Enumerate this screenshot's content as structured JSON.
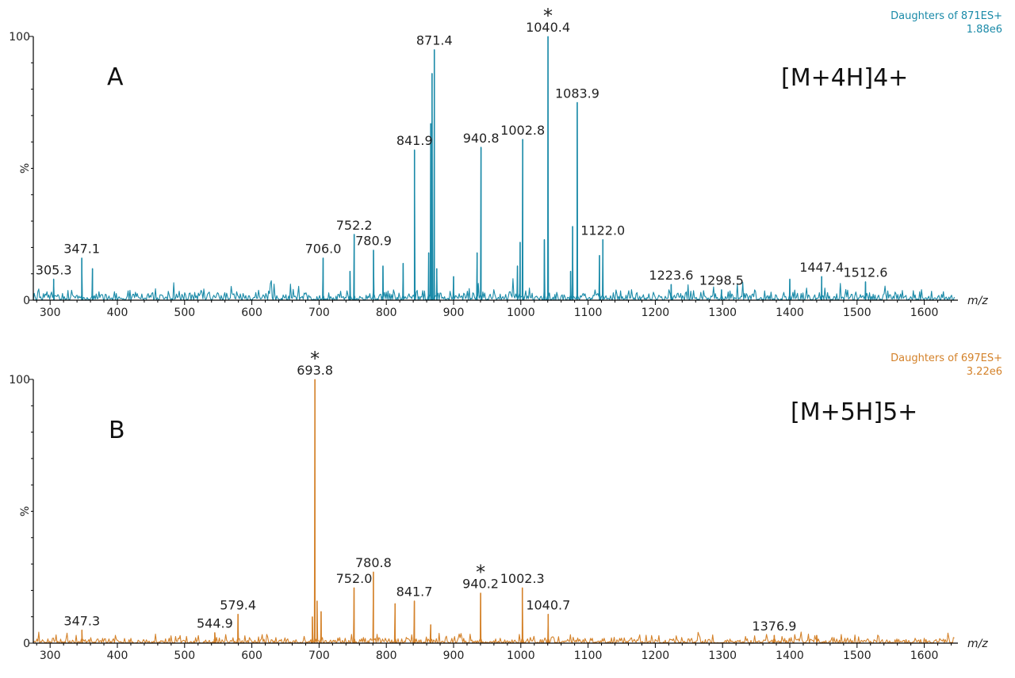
{
  "chart_data": [
    {
      "type": "line",
      "panel_label": "A",
      "ion_label": "[M+4H]4+",
      "info_line1": "Daughters of 871ES+",
      "info_line2": "1.88e6",
      "color": "#1a8aa8",
      "xlabel": "m/z",
      "ylabel": "%",
      "xlim": [
        275,
        1650
      ],
      "ylim": [
        0,
        100
      ],
      "x_ticks": [
        300,
        400,
        500,
        600,
        700,
        800,
        900,
        1000,
        1100,
        1200,
        1300,
        1400,
        1500,
        1600
      ],
      "x_tick_labels": [
        "300",
        "400",
        "500",
        "600",
        "700",
        "800",
        "900",
        "1000",
        "1100",
        "1200",
        "1300",
        "1400",
        "1500",
        "1600"
      ],
      "y_ticks": [
        0,
        100
      ],
      "y_tick_labels": [
        "0",
        "100"
      ],
      "peaks": [
        {
          "x": 305.3,
          "y": 8,
          "label": "305.3"
        },
        {
          "x": 347.1,
          "y": 16,
          "label": "347.1"
        },
        {
          "x": 363,
          "y": 12
        },
        {
          "x": 706.0,
          "y": 16,
          "label": "706.0"
        },
        {
          "x": 746,
          "y": 11
        },
        {
          "x": 752.2,
          "y": 25,
          "label": "752.2"
        },
        {
          "x": 780.9,
          "y": 19,
          "label": "780.9"
        },
        {
          "x": 795,
          "y": 13
        },
        {
          "x": 825,
          "y": 14
        },
        {
          "x": 841.9,
          "y": 57,
          "label": "841.9"
        },
        {
          "x": 863,
          "y": 18
        },
        {
          "x": 866,
          "y": 67
        },
        {
          "x": 868,
          "y": 86
        },
        {
          "x": 871.4,
          "y": 95,
          "label": "871.4"
        },
        {
          "x": 875,
          "y": 12
        },
        {
          "x": 900,
          "y": 9
        },
        {
          "x": 935,
          "y": 18
        },
        {
          "x": 940.8,
          "y": 58,
          "label": "940.8"
        },
        {
          "x": 995,
          "y": 13
        },
        {
          "x": 999,
          "y": 22
        },
        {
          "x": 1002.8,
          "y": 61,
          "label": "1002.8"
        },
        {
          "x": 1035,
          "y": 23
        },
        {
          "x": 1040.4,
          "y": 100,
          "label": "1040.4",
          "star": true
        },
        {
          "x": 1074,
          "y": 11
        },
        {
          "x": 1077,
          "y": 28
        },
        {
          "x": 1083.9,
          "y": 75,
          "label": "1083.9"
        },
        {
          "x": 1117,
          "y": 17
        },
        {
          "x": 1122.0,
          "y": 23,
          "label": "1122.0"
        },
        {
          "x": 1223.6,
          "y": 6,
          "label": "1223.6"
        },
        {
          "x": 1298.5,
          "y": 4,
          "label": "1298.5"
        },
        {
          "x": 1400,
          "y": 8
        },
        {
          "x": 1447.4,
          "y": 9,
          "label": "1447.4"
        },
        {
          "x": 1512.6,
          "y": 7,
          "label": "1512.6"
        }
      ]
    },
    {
      "type": "line",
      "panel_label": "B",
      "ion_label": "[M+5H]5+",
      "info_line1": "Daughters of 697ES+",
      "info_line2": "3.22e6",
      "color": "#d4822a",
      "xlabel": "m/z",
      "ylabel": "%",
      "xlim": [
        275,
        1650
      ],
      "ylim": [
        0,
        100
      ],
      "x_ticks": [
        300,
        400,
        500,
        600,
        700,
        800,
        900,
        1000,
        1100,
        1200,
        1300,
        1400,
        1500,
        1600
      ],
      "x_tick_labels": [
        "300",
        "400",
        "500",
        "600",
        "700",
        "800",
        "900",
        "1000",
        "1100",
        "1200",
        "1300",
        "1400",
        "1500",
        "1600"
      ],
      "y_ticks": [
        0,
        100
      ],
      "y_tick_labels": [
        "0",
        "100"
      ],
      "peaks": [
        {
          "x": 347.3,
          "y": 5,
          "label": "347.3"
        },
        {
          "x": 544.9,
          "y": 4,
          "label": "544.9"
        },
        {
          "x": 579.4,
          "y": 11,
          "label": "579.4"
        },
        {
          "x": 690,
          "y": 10
        },
        {
          "x": 693.8,
          "y": 100,
          "label": "693.8",
          "star": true
        },
        {
          "x": 697,
          "y": 16
        },
        {
          "x": 703,
          "y": 12
        },
        {
          "x": 752.0,
          "y": 21,
          "label": "752.0"
        },
        {
          "x": 780.8,
          "y": 27,
          "label": "780.8"
        },
        {
          "x": 813,
          "y": 15
        },
        {
          "x": 841.7,
          "y": 16,
          "label": "841.7"
        },
        {
          "x": 866,
          "y": 7
        },
        {
          "x": 940.2,
          "y": 19,
          "label": "940.2",
          "star": true
        },
        {
          "x": 1002.3,
          "y": 21,
          "label": "1002.3"
        },
        {
          "x": 1040.7,
          "y": 11,
          "label": "1040.7"
        },
        {
          "x": 1376.9,
          "y": 3,
          "label": "1376.9"
        },
        {
          "x": 1440,
          "y": 3
        }
      ]
    }
  ]
}
